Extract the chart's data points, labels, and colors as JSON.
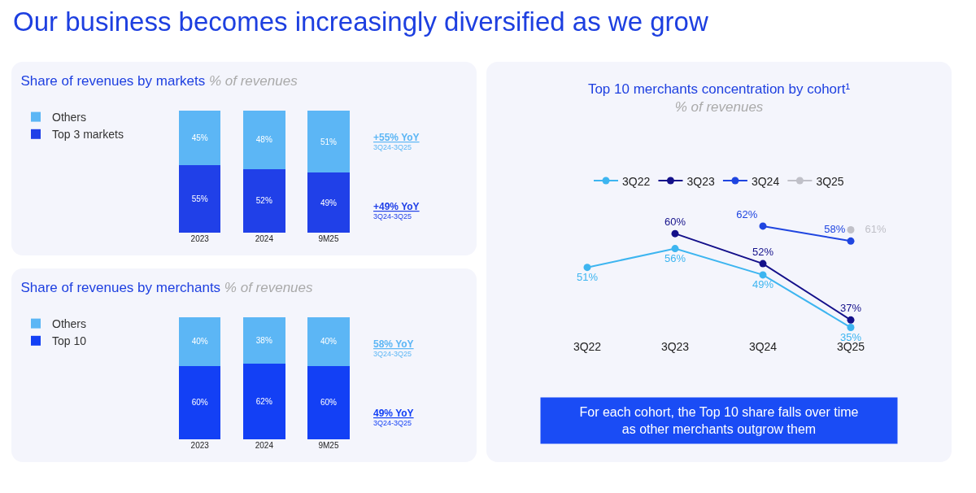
{
  "chart_data": [
    {
      "type": "bar",
      "stacked": true,
      "title": "Share of revenues by markets",
      "subtitle": "% of revenues",
      "categories": [
        "2023",
        "2024",
        "9M25"
      ],
      "series": [
        {
          "name": "Top 3 markets",
          "color": "#2040e8",
          "values": [
            55,
            52,
            49
          ],
          "value_labels": [
            "55%",
            "52%",
            "49%"
          ]
        },
        {
          "name": "Others",
          "color": "#5cb6f5",
          "values": [
            45,
            48,
            51
          ],
          "value_labels": [
            "45%",
            "48%",
            "51%"
          ]
        }
      ],
      "legend": "top left",
      "grid": false,
      "annotations": [
        "Our business becomes increasingly diversified as we grow",
        "+55% YoY",
        "3Q24-3Q25",
        "+49% YoY",
        "3Q24-3Q25"
      ]
    },
    {
      "type": "bar",
      "stacked": true,
      "title": "Share of revenues by merchants",
      "subtitle": "% of revenues",
      "categories": [
        "2023",
        "2024",
        "9M25"
      ],
      "series": [
        {
          "name": "Top 10",
          "color": "#1340f5",
          "values": [
            60,
            62,
            60
          ],
          "value_labels": [
            "60%",
            "62%",
            "60%"
          ]
        },
        {
          "name": "Others",
          "color": "#5cb6f5",
          "values": [
            40,
            38,
            40
          ],
          "value_labels": [
            "40%",
            "38%",
            "40%"
          ]
        }
      ],
      "legend": "top left",
      "grid": false,
      "annotations": [
        "58% YoY",
        "3Q24-3Q25",
        "49% YoY",
        "3Q24-3Q25"
      ]
    },
    {
      "type": "line",
      "title": "Top 10 merchants concentration by cohort¹",
      "subtitle": "% of revenues",
      "categories": [
        "3Q22",
        "3Q23",
        "3Q24",
        "3Q25"
      ],
      "series": [
        {
          "name": "3Q22",
          "color": "#3db5f0",
          "values": [
            51,
            56,
            49,
            35
          ],
          "value_labels": [
            "51%",
            "56%",
            "49%",
            "35%"
          ]
        },
        {
          "name": "3Q23",
          "color": "#14108a",
          "values": [
            null,
            60,
            52,
            37
          ],
          "value_labels": [
            null,
            "60%",
            "52%",
            "37%"
          ]
        },
        {
          "name": "3Q24",
          "color": "#1f45e0",
          "values": [
            null,
            null,
            62,
            58
          ],
          "value_labels": [
            null,
            null,
            "62%",
            "58%"
          ]
        },
        {
          "name": "3Q25",
          "color": "#c0c0c8",
          "values": [
            null,
            null,
            null,
            61
          ],
          "value_labels": [
            null,
            null,
            null,
            "61%"
          ]
        }
      ],
      "legend": "top",
      "marker": "circle",
      "line_style": "solid",
      "grid": false,
      "annotations": [
        "For each cohort, the Top 10 share falls over time as other merchants outgrow them"
      ]
    }
  ]
}
